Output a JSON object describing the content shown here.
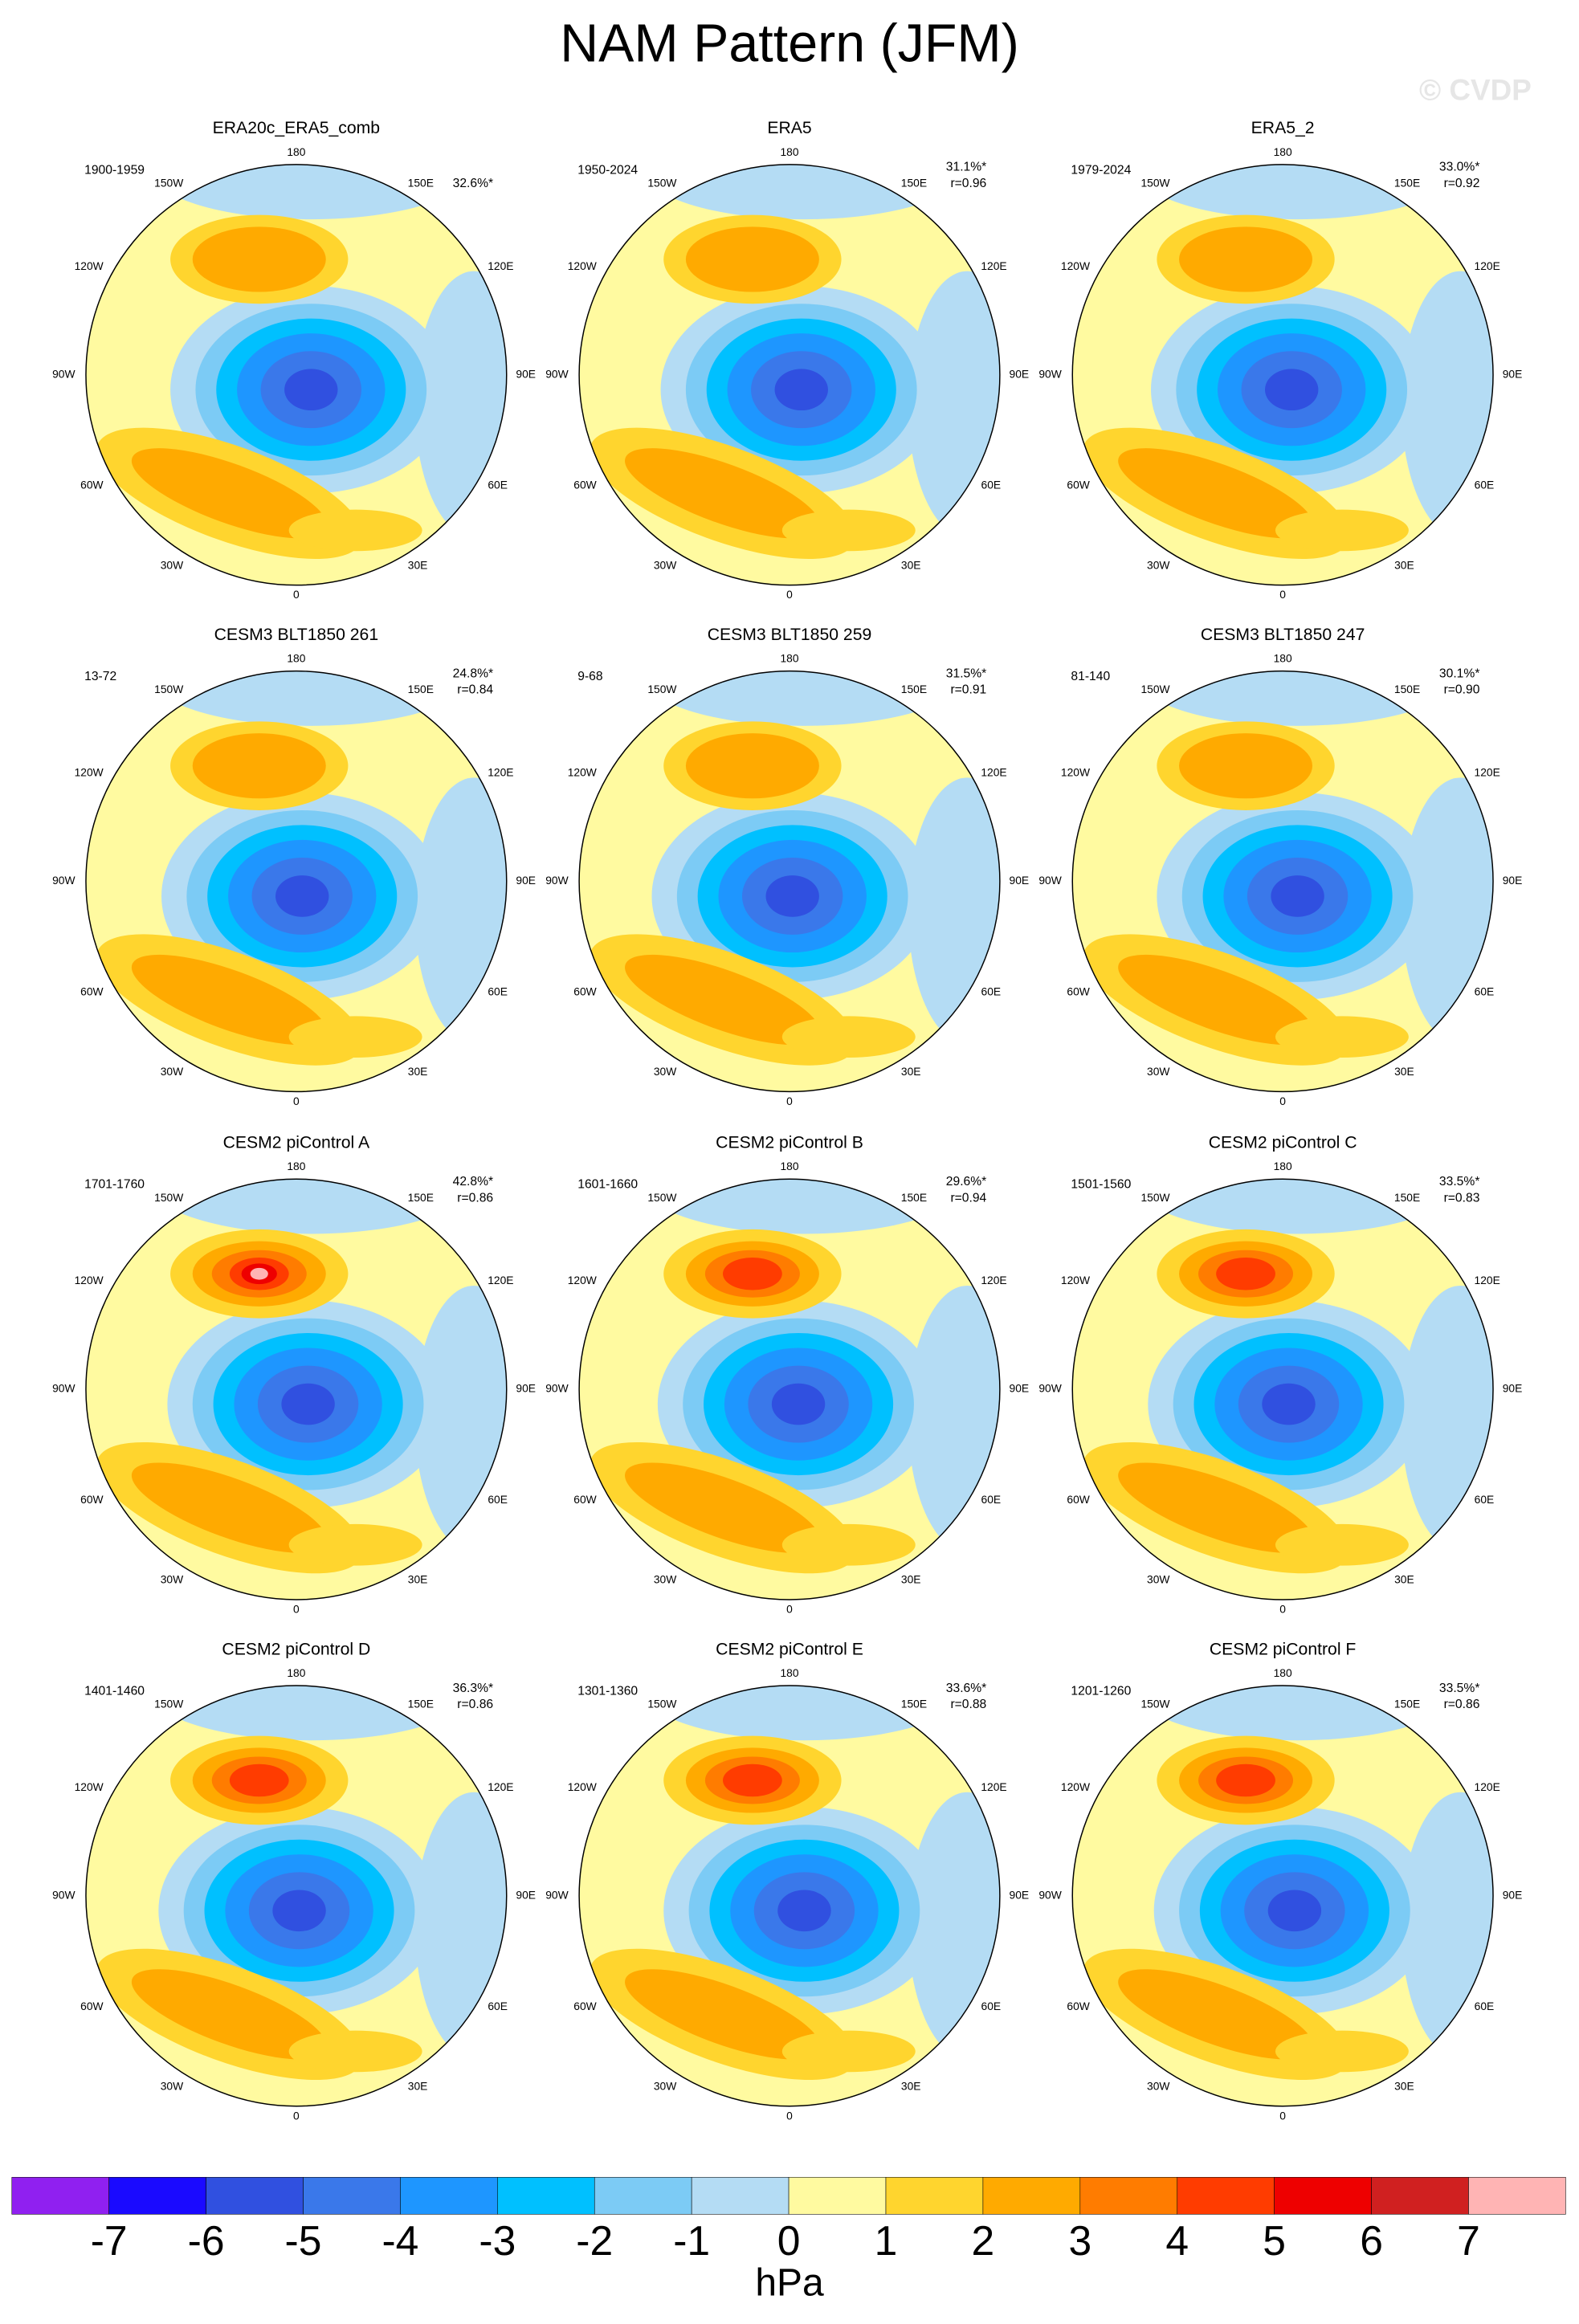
{
  "title": "NAM Pattern (JFM)",
  "watermark": "© CVDP",
  "lon_labels": [
    "180",
    "150E",
    "120E",
    "90E",
    "60E",
    "30E",
    "0",
    "30W",
    "60W",
    "90W",
    "120W",
    "150W"
  ],
  "panels": [
    {
      "title": "ERA20c_ERA5_comb",
      "period": "1900-1959",
      "pct": "32.6%*"
    },
    {
      "title": "ERA5",
      "period": "1950-2024",
      "pct": "31.1%*",
      "r": "r=0.96"
    },
    {
      "title": "ERA5_2",
      "period": "1979-2024",
      "pct": "33.0%*",
      "r": "r=0.92"
    },
    {
      "title": "CESM3 BLT1850 261",
      "period": "13-72",
      "pct": "24.8%*",
      "r": "r=0.84"
    },
    {
      "title": "CESM3 BLT1850 259",
      "period": "9-68",
      "pct": "31.5%*",
      "r": "r=0.91"
    },
    {
      "title": "CESM3 BLT1850 247",
      "period": "81-140",
      "pct": "30.1%*",
      "r": "r=0.90"
    },
    {
      "title": "CESM2 piControl A",
      "period": "1701-1760",
      "pct": "42.8%*",
      "r": "r=0.86"
    },
    {
      "title": "CESM2 piControl B",
      "period": "1601-1660",
      "pct": "29.6%*",
      "r": "r=0.94"
    },
    {
      "title": "CESM2 piControl C",
      "period": "1501-1560",
      "pct": "33.5%*",
      "r": "r=0.83"
    },
    {
      "title": "CESM2 piControl D",
      "period": "1401-1460",
      "pct": "36.3%*",
      "r": "r=0.86"
    },
    {
      "title": "CESM2 piControl E",
      "period": "1301-1360",
      "pct": "33.6%*",
      "r": "r=0.88"
    },
    {
      "title": "CESM2 piControl F",
      "period": "1201-1260",
      "pct": "33.5%*",
      "r": "r=0.86"
    }
  ],
  "colorbar": {
    "colors": [
      "#9020f0",
      "#1a0aff",
      "#3050e0",
      "#3a78ea",
      "#1e96ff",
      "#00c0ff",
      "#7ccbf5",
      "#b4dcf4",
      "#fffaa0",
      "#ffd52e",
      "#ffaa00",
      "#ff7c00",
      "#ff3c00",
      "#ee0000",
      "#d02020",
      "#ffb4b4"
    ],
    "ticks": [
      -7,
      -6,
      -5,
      -4,
      -3,
      -2,
      -1,
      0,
      1,
      2,
      3,
      4,
      5,
      6,
      7
    ],
    "label": "hPa"
  }
}
